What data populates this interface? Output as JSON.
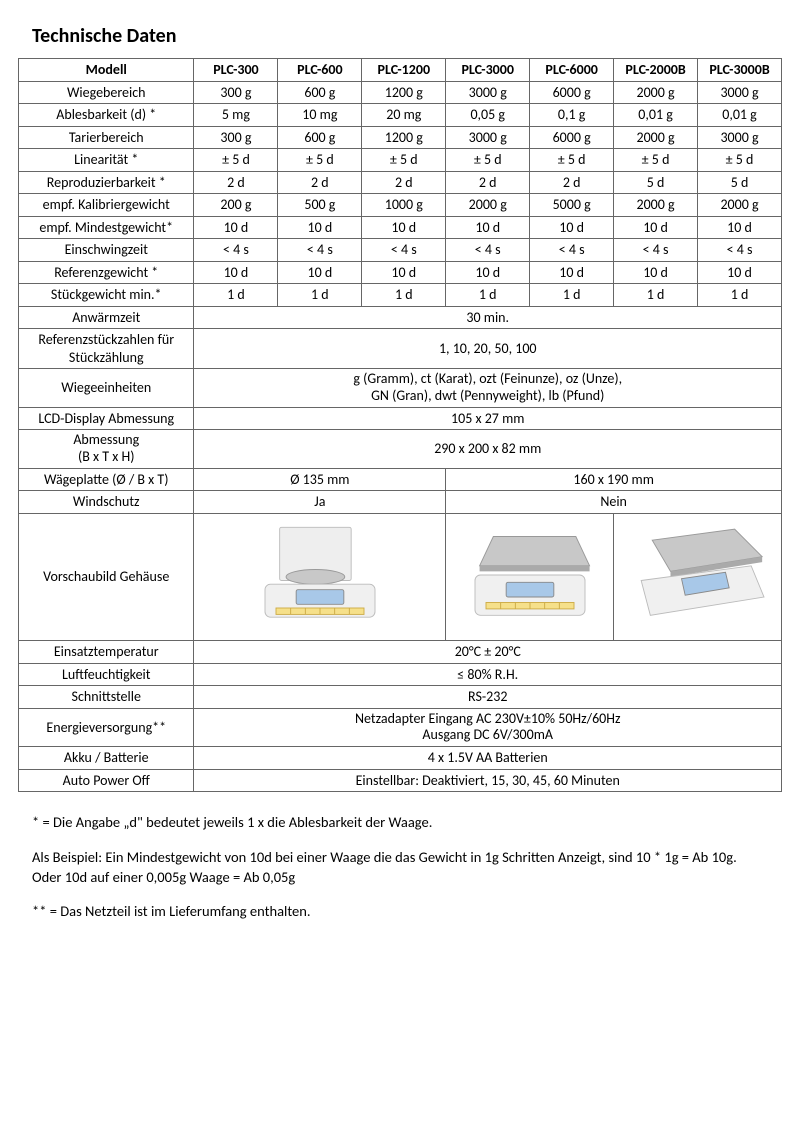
{
  "title": "Technische Daten",
  "headers": [
    "Modell",
    "PLC-300",
    "PLC-600",
    "PLC-1200",
    "PLC-3000",
    "PLC-6000",
    "PLC-2000B",
    "PLC-3000B"
  ],
  "rows": [
    {
      "label": "Wiegebereich",
      "cells": [
        "300 g",
        "600 g",
        "1200 g",
        "3000 g",
        "6000 g",
        "2000 g",
        "3000 g"
      ]
    },
    {
      "label": "Ablesbarkeit (d) *",
      "cells": [
        "5 mg",
        "10 mg",
        "20 mg",
        "0,05 g",
        "0,1 g",
        "0,01 g",
        "0,01 g"
      ]
    },
    {
      "label": "Tarierbereich",
      "cells": [
        "300 g",
        "600 g",
        "1200 g",
        "3000 g",
        "6000 g",
        "2000 g",
        "3000 g"
      ]
    },
    {
      "label": "Linearität *",
      "cells": [
        "± 5 d",
        "± 5 d",
        "± 5 d",
        "± 5 d",
        "± 5 d",
        "± 5 d",
        "± 5 d"
      ]
    },
    {
      "label": "Reproduzierbarkeit *",
      "cells": [
        "2 d",
        "2 d",
        "2 d",
        "2 d",
        "2 d",
        "5 d",
        "5 d"
      ]
    },
    {
      "label": "empf. Kalibriergewicht",
      "cells": [
        "200 g",
        "500 g",
        "1000 g",
        "2000 g",
        "5000 g",
        "2000 g",
        "2000 g"
      ]
    },
    {
      "label": "empf. Mindestgewicht*",
      "cells": [
        "10 d",
        "10 d",
        "10 d",
        "10 d",
        "10 d",
        "10 d",
        "10 d"
      ]
    },
    {
      "label": "Einschwingzeit",
      "cells": [
        "< 4 s",
        "< 4 s",
        "< 4 s",
        "< 4 s",
        "< 4 s",
        "< 4 s",
        "< 4 s"
      ]
    },
    {
      "label": "Referenzgewicht *",
      "cells": [
        "10 d",
        "10 d",
        "10 d",
        "10 d",
        "10 d",
        "10 d",
        "10 d"
      ]
    },
    {
      "label": "Stückgewicht min.*",
      "cells": [
        "1 d",
        "1 d",
        "1 d",
        "1 d",
        "1 d",
        "1 d",
        "1 d"
      ]
    }
  ],
  "merged": [
    {
      "label": "Anwärmzeit",
      "value": "30 min."
    },
    {
      "label": "Referenzstückzahlen für Stückzählung",
      "value": "1, 10, 20, 50, 100"
    },
    {
      "label": "Wiegeeinheiten",
      "value": "g (Gramm), ct (Karat), ozt (Feinunze), oz (Unze),\nGN (Gran), dwt (Pennyweight), lb (Pfund)"
    },
    {
      "label": "LCD-Display Abmessung",
      "value": "105 x 27 mm"
    },
    {
      "label": "Abmessung\n(B x T x H)",
      "value": "290 x 200 x 82 mm"
    }
  ],
  "splitRows": [
    {
      "label": "Wägeplatte (Ø / B x T)",
      "left": "Ø 135 mm",
      "right": "160 x 190 mm"
    },
    {
      "label": "Windschutz",
      "left": "Ja",
      "right": "Nein"
    }
  ],
  "imageRowLabel": "Vorschaubild Gehäuse",
  "merged2": [
    {
      "label": "Einsatztemperatur",
      "value": "20°C ± 20°C"
    },
    {
      "label": "Luftfeuchtigkeit",
      "value": "≤ 80% R.H."
    },
    {
      "label": "Schnittstelle",
      "value": "RS-232"
    },
    {
      "label": "Energieversorgung**",
      "value": "Netzadapter Eingang AC 230V±10% 50Hz/60Hz\nAusgang DC 6V/300mA"
    },
    {
      "label": "Akku / Batterie",
      "value": "4 x 1.5V AA Batterien"
    },
    {
      "label": "Auto Power Off",
      "value": "Einstellbar: Deaktiviert, 15, 30, 45, 60 Minuten"
    }
  ],
  "footnote1": "* = Die Angabe „d\" bedeutet jeweils 1 x die Ablesbarkeit der Waage.",
  "footnote2": "Als Beispiel: Ein Mindestgewicht von 10d bei einer Waage die das Gewicht in 1g Schritten Anzeigt, sind 10 * 1g = Ab 10g. Oder 10d auf einer 0,005g Waage = Ab 0,05g",
  "footnote3": "** = Das Netzteil ist im Lieferumfang enthalten.",
  "colors": {
    "border": "#666666",
    "text": "#000000",
    "bg": "#ffffff",
    "scaleBody": "#f0f0f0",
    "scaleDark": "#d8d8d8",
    "display": "#a8c8e8",
    "platter": "#c8c8c8",
    "shield": "#eeeeee"
  }
}
